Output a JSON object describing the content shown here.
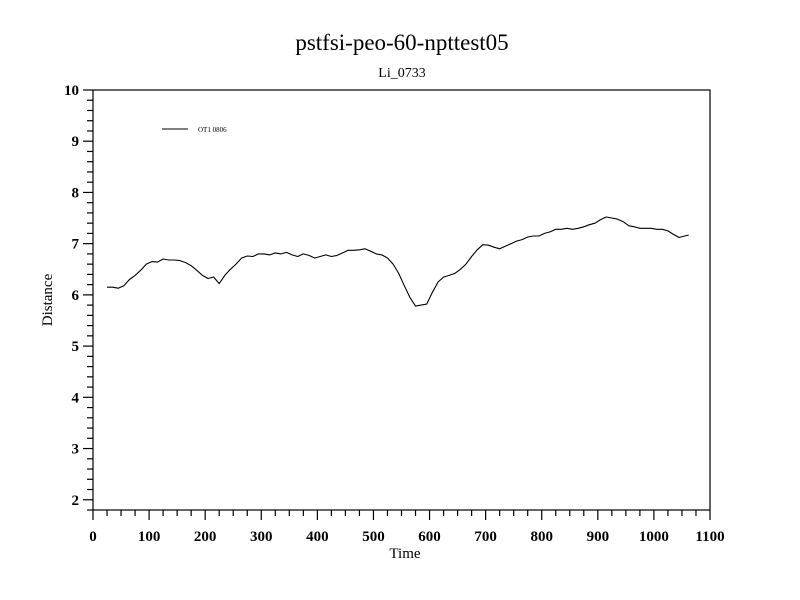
{
  "chart_data": {
    "type": "line",
    "title": "pstfsi-peo-60-npttest05",
    "subtitle": "Li_0733",
    "xlabel": "Time",
    "ylabel": "Distance",
    "xlim": [
      0,
      1100
    ],
    "ylim": [
      1.8,
      10
    ],
    "xticks": [
      0,
      100,
      200,
      300,
      400,
      500,
      600,
      700,
      800,
      900,
      1000,
      1100
    ],
    "yticks": [
      2,
      3,
      4,
      5,
      6,
      7,
      8,
      9,
      10
    ],
    "grid": false,
    "legend": "top-left",
    "series": [
      {
        "name": "OT1 0806",
        "color": "#000000",
        "x": [
          25,
          35,
          45,
          55,
          65,
          75,
          85,
          95,
          105,
          115,
          125,
          135,
          145,
          155,
          165,
          175,
          185,
          195,
          205,
          215,
          225,
          235,
          245,
          255,
          265,
          275,
          285,
          295,
          305,
          315,
          325,
          335,
          345,
          355,
          365,
          375,
          385,
          395,
          405,
          415,
          425,
          435,
          445,
          455,
          465,
          475,
          485,
          495,
          505,
          515,
          525,
          535,
          545,
          555,
          565,
          575,
          585,
          595,
          605,
          615,
          625,
          635,
          645,
          655,
          665,
          675,
          685,
          695,
          705,
          715,
          725,
          735,
          745,
          755,
          765,
          775,
          785,
          795,
          805,
          815,
          825,
          835,
          845,
          855,
          865,
          875,
          885,
          895,
          905,
          915,
          925,
          935,
          945,
          955,
          965,
          975,
          985,
          995,
          1005,
          1015,
          1025,
          1035,
          1045,
          1055,
          1062
        ],
        "values": [
          6.15,
          6.15,
          6.13,
          6.18,
          6.3,
          6.38,
          6.48,
          6.6,
          6.65,
          6.64,
          6.7,
          6.68,
          6.68,
          6.67,
          6.63,
          6.57,
          6.48,
          6.38,
          6.32,
          6.35,
          6.22,
          6.38,
          6.5,
          6.6,
          6.72,
          6.76,
          6.75,
          6.8,
          6.8,
          6.78,
          6.82,
          6.8,
          6.83,
          6.78,
          6.75,
          6.8,
          6.77,
          6.72,
          6.75,
          6.78,
          6.75,
          6.77,
          6.82,
          6.87,
          6.87,
          6.88,
          6.9,
          6.85,
          6.8,
          6.78,
          6.72,
          6.6,
          6.42,
          6.18,
          5.95,
          5.78,
          5.8,
          5.82,
          6.05,
          6.25,
          6.35,
          6.38,
          6.42,
          6.5,
          6.6,
          6.75,
          6.88,
          6.98,
          6.97,
          6.93,
          6.9,
          6.95,
          7.0,
          7.05,
          7.08,
          7.13,
          7.15,
          7.15,
          7.2,
          7.23,
          7.28,
          7.28,
          7.3,
          7.28,
          7.3,
          7.33,
          7.37,
          7.4,
          7.47,
          7.52,
          7.5,
          7.48,
          7.43,
          7.35,
          7.33,
          7.3,
          7.3,
          7.3,
          7.28,
          7.28,
          7.25,
          7.18,
          7.12,
          7.15,
          7.17
        ]
      }
    ]
  }
}
